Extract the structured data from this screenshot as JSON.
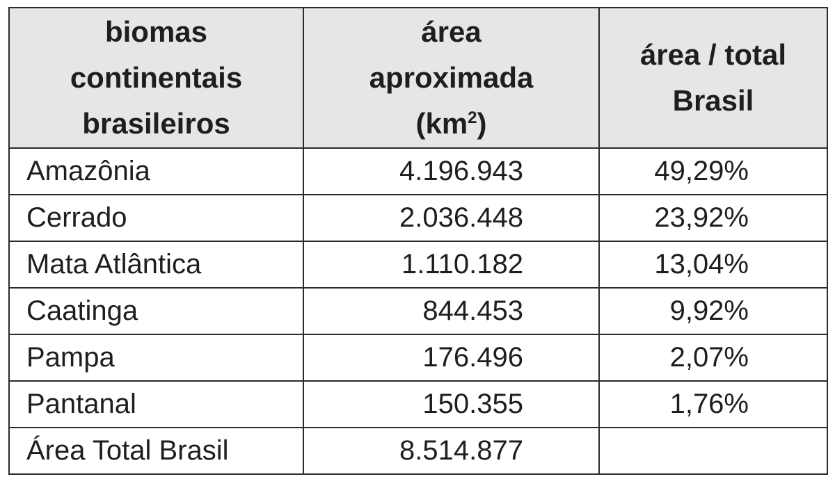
{
  "table": {
    "headers": {
      "biome": [
        "biomas",
        "continentais",
        "brasileiros"
      ],
      "area": [
        "área",
        "aproximada",
        "(km",
        "2",
        ")"
      ],
      "ratio": [
        "área / total",
        "Brasil"
      ]
    },
    "rows": [
      {
        "name": "Amazônia",
        "area": "4.196.943",
        "pct": "49,29%"
      },
      {
        "name": "Cerrado",
        "area": "2.036.448",
        "pct": "23,92%"
      },
      {
        "name": "Mata Atlântica",
        "area": "1.110.182",
        "pct": "13,04%"
      },
      {
        "name": "Caatinga",
        "area": "844.453",
        "pct": "9,92%"
      },
      {
        "name": "Pampa",
        "area": "176.496",
        "pct": "2,07%"
      },
      {
        "name": "Pantanal",
        "area": "150.355",
        "pct": "1,76%"
      },
      {
        "name": "Área Total Brasil",
        "area": "8.514.877",
        "pct": ""
      }
    ]
  }
}
